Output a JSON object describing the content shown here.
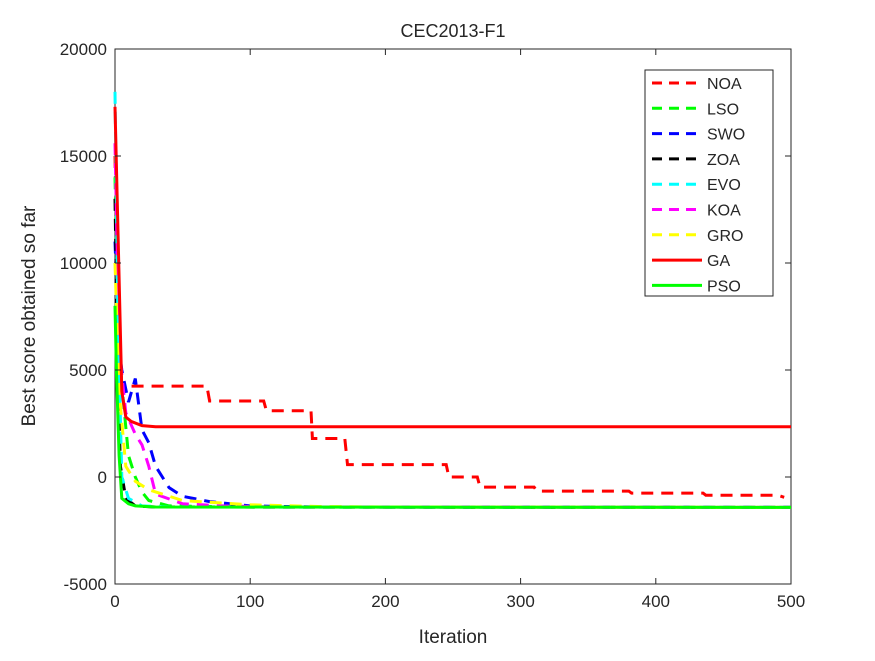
{
  "chart_data": {
    "type": "line",
    "title": "CEC2013-F1",
    "xlabel": "Iteration",
    "ylabel": "Best score obtained so far",
    "xlim": [
      0,
      500
    ],
    "ylim": [
      -5000,
      20000
    ],
    "xticks": [
      "0",
      "100",
      "200",
      "300",
      "400",
      "500"
    ],
    "yticks": [
      "-5000",
      "0",
      "5000",
      "10000",
      "15000",
      "20000"
    ],
    "legend_position": "top-right",
    "grid": false,
    "series": [
      {
        "name": "NOA",
        "color": "#ff0000",
        "dash": true,
        "x": [
          0,
          2,
          5,
          68,
          70,
          110,
          112,
          145,
          146,
          170,
          172,
          245,
          247,
          268,
          270,
          310,
          312,
          380,
          382,
          435,
          437,
          490,
          495
        ],
        "y": [
          15000,
          8000,
          4250,
          4250,
          3550,
          3550,
          3100,
          3100,
          1800,
          1800,
          580,
          580,
          0,
          0,
          -470,
          -470,
          -660,
          -660,
          -750,
          -750,
          -850,
          -850,
          -950
        ]
      },
      {
        "name": "LSO",
        "color": "#00ff00",
        "dash": true,
        "x": [
          0,
          2,
          4,
          10,
          15,
          20,
          25,
          40,
          100,
          500
        ],
        "y": [
          14000,
          8000,
          5000,
          1000,
          0,
          -700,
          -1100,
          -1350,
          -1400,
          -1420
        ]
      },
      {
        "name": "SWO",
        "color": "#0000ff",
        "dash": true,
        "x": [
          0,
          3,
          5,
          10,
          15,
          20,
          25,
          30,
          40,
          50,
          70,
          100,
          150,
          500
        ],
        "y": [
          11000,
          6000,
          5000,
          3500,
          4600,
          2200,
          1600,
          500,
          -500,
          -900,
          -1150,
          -1350,
          -1400,
          -1420
        ]
      },
      {
        "name": "ZOA",
        "color": "#000000",
        "dash": true,
        "x": [
          0,
          2,
          4,
          8,
          15,
          30,
          500
        ],
        "y": [
          13000,
          5000,
          500,
          -1000,
          -1350,
          -1400,
          -1420
        ]
      },
      {
        "name": "EVO",
        "color": "#00ffff",
        "dash": true,
        "x": [
          0,
          2,
          5,
          10,
          20,
          40,
          500
        ],
        "y": [
          18000,
          8000,
          0,
          -1000,
          -1350,
          -1400,
          -1420
        ]
      },
      {
        "name": "KOA",
        "color": "#ff00ff",
        "dash": true,
        "x": [
          0,
          3,
          8,
          15,
          20,
          25,
          30,
          50,
          80,
          120,
          500
        ],
        "y": [
          15600,
          6000,
          3000,
          2000,
          1500,
          500,
          -800,
          -1250,
          -1350,
          -1400,
          -1420
        ]
      },
      {
        "name": "GRO",
        "color": "#ffff00",
        "dash": true,
        "x": [
          0,
          3,
          8,
          15,
          25,
          50,
          100,
          150,
          200,
          500
        ],
        "y": [
          10000,
          4000,
          500,
          -200,
          -600,
          -1100,
          -1300,
          -1380,
          -1400,
          -1420
        ]
      },
      {
        "name": "GA",
        "color": "#ff0000",
        "dash": false,
        "x": [
          0,
          5,
          8,
          12,
          20,
          30,
          500
        ],
        "y": [
          17300,
          4000,
          2800,
          2600,
          2400,
          2350,
          2350
        ]
      },
      {
        "name": "PSO",
        "color": "#00ff00",
        "dash": false,
        "x": [
          0,
          1,
          3,
          5,
          10,
          15,
          30,
          500
        ],
        "y": [
          8000,
          5000,
          1000,
          -1000,
          -1250,
          -1350,
          -1400,
          -1420
        ]
      }
    ]
  }
}
